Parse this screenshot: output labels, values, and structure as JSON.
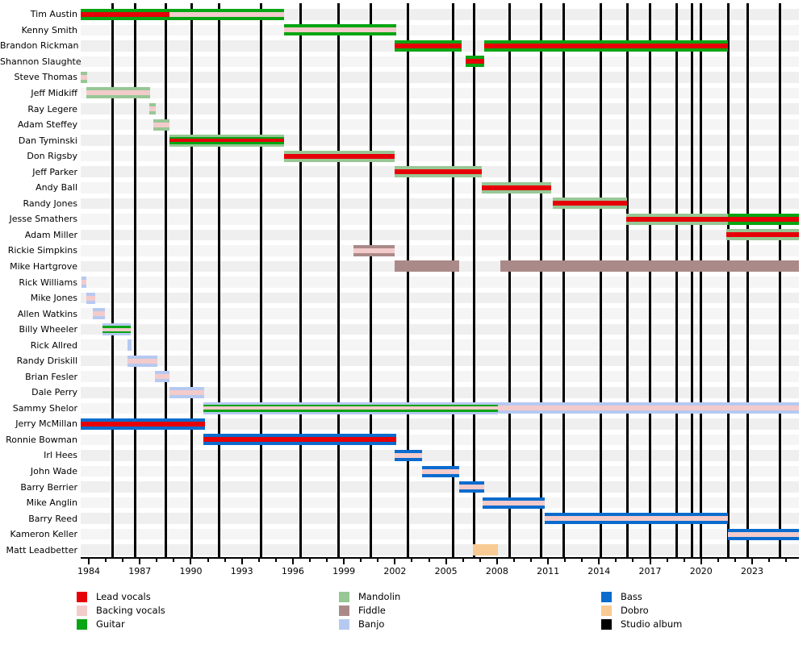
{
  "chart_data": {
    "type": "bar",
    "subtype": "membership-timeline-gantt",
    "title": "",
    "x_axis": {
      "start": 1983.53,
      "end": 2025.75,
      "major_tick_years": [
        1984,
        1987,
        1990,
        1993,
        1996,
        1999,
        2002,
        2005,
        2008,
        2011,
        2014,
        2017,
        2020,
        2023
      ],
      "minor_tick_step": 1,
      "minor_tick_first": 1984,
      "minor_tick_last": 2025
    },
    "roles": {
      "lead_vocals": {
        "label": "Lead vocals",
        "color": "#e60008"
      },
      "backing_vocals": {
        "label": "Backing vocals",
        "color": "#f4cbcb"
      },
      "guitar": {
        "label": "Guitar",
        "color": "#07a513"
      },
      "mandolin": {
        "label": "Mandolin",
        "color": "#97c795"
      },
      "fiddle": {
        "label": "Fiddle",
        "color": "#aa8a89"
      },
      "banjo": {
        "label": "Banjo",
        "color": "#b6c9f1"
      },
      "bass": {
        "label": "Bass",
        "color": "#0b6ccd"
      },
      "dobro": {
        "label": "Dobro",
        "color": "#f8cb94"
      },
      "studio_album": {
        "label": "Studio album",
        "color": "#000000"
      }
    },
    "legend": {
      "columns": [
        [
          "lead_vocals",
          "backing_vocals",
          "guitar"
        ],
        [
          "mandolin",
          "fiddle",
          "banjo"
        ],
        [
          "bass",
          "dobro",
          "studio_album"
        ]
      ]
    },
    "album_line_years": [
      1985.4,
      1986.75,
      1988.55,
      1990.05,
      1991.65,
      1994.15,
      1996.45,
      1998.7,
      2000.6,
      2002.75,
      2005.4,
      2006.65,
      2008.75,
      2010.6,
      2011.9,
      2014.1,
      2015.65,
      2017.0,
      2018.55,
      2019.45,
      2020.0,
      2021.6,
      2022.75,
      2024.65
    ],
    "categories": [
      "Tim Austin",
      "Kenny Smith",
      "Brandon Rickman",
      "Shannon Slaughter",
      "Steve Thomas",
      "Jeff Midkiff",
      "Ray Legere",
      "Adam Steffey",
      "Dan Tyminski",
      "Don Rigsby",
      "Jeff Parker",
      "Andy Ball",
      "Randy Jones",
      "Jesse Smathers",
      "Adam Miller",
      "Rickie Simpkins",
      "Mike Hartgrove",
      "Rick Williams",
      "Mike Jones",
      "Allen Watkins",
      "Billy Wheeler",
      "Rick Allred",
      "Randy Driskill",
      "Brian Fesler",
      "Dale Perry",
      "Sammy Shelor",
      "Jerry McMillan",
      "Ronnie Bowman",
      "Irl Hees",
      "John Wade",
      "Barry Berrier",
      "Mike Anglin",
      "Barry Reed",
      "Kameron Keller",
      "Matt Leadbetter"
    ],
    "members": [
      {
        "name": "Tim Austin",
        "segments": [
          {
            "start": 1983.53,
            "end": 1988.75,
            "layers": [
              "guitar",
              "lead_vocals",
              "guitar"
            ]
          },
          {
            "start": 1988.75,
            "end": 1995.5,
            "layers": [
              "guitar",
              "backing_vocals",
              "guitar"
            ]
          }
        ]
      },
      {
        "name": "Kenny Smith",
        "segments": [
          {
            "start": 1995.5,
            "end": 2002.1,
            "layers": [
              "guitar",
              "backing_vocals",
              "guitar"
            ]
          }
        ]
      },
      {
        "name": "Brandon Rickman",
        "segments": [
          {
            "start": 2002.0,
            "end": 2005.9,
            "layers": [
              "guitar",
              "lead_vocals",
              "guitar"
            ]
          },
          {
            "start": 2007.25,
            "end": 2021.6,
            "layers": [
              "guitar",
              "lead_vocals",
              "guitar"
            ]
          }
        ]
      },
      {
        "name": "Shannon Slaughter",
        "segments": [
          {
            "start": 2006.15,
            "end": 2007.25,
            "layers": [
              "guitar",
              "lead_vocals",
              "guitar"
            ]
          }
        ]
      },
      {
        "name": "Steve Thomas",
        "segments": [
          {
            "start": 1983.53,
            "end": 1983.9,
            "layers": [
              "mandolin",
              "backing_vocals",
              "mandolin"
            ]
          }
        ]
      },
      {
        "name": "Jeff Midkiff",
        "segments": [
          {
            "start": 1983.85,
            "end": 1987.6,
            "layers": [
              "mandolin",
              "backing_vocals",
              "mandolin"
            ]
          }
        ]
      },
      {
        "name": "Ray Legere",
        "segments": [
          {
            "start": 1987.55,
            "end": 1987.95,
            "layers": [
              "mandolin",
              "backing_vocals",
              "mandolin"
            ]
          }
        ]
      },
      {
        "name": "Adam Steffey",
        "segments": [
          {
            "start": 1987.8,
            "end": 1988.75,
            "layers": [
              "mandolin",
              "backing_vocals",
              "mandolin"
            ]
          }
        ]
      },
      {
        "name": "Dan Tyminski",
        "segments": [
          {
            "start": 1988.75,
            "end": 1995.5,
            "layers": [
              "mandolin",
              "guitar",
              "lead_vocals",
              "guitar",
              "mandolin"
            ]
          }
        ]
      },
      {
        "name": "Don Rigsby",
        "segments": [
          {
            "start": 1995.5,
            "end": 2002.0,
            "layers": [
              "mandolin",
              "lead_vocals",
              "mandolin"
            ]
          }
        ]
      },
      {
        "name": "Jeff Parker",
        "segments": [
          {
            "start": 2002.0,
            "end": 2007.1,
            "layers": [
              "mandolin",
              "lead_vocals",
              "mandolin"
            ]
          }
        ]
      },
      {
        "name": "Andy Ball",
        "segments": [
          {
            "start": 2007.1,
            "end": 2011.2,
            "layers": [
              "mandolin",
              "lead_vocals",
              "mandolin"
            ]
          }
        ]
      },
      {
        "name": "Randy Jones",
        "segments": [
          {
            "start": 2011.3,
            "end": 2015.65,
            "layers": [
              "mandolin",
              "lead_vocals",
              "mandolin"
            ]
          }
        ]
      },
      {
        "name": "Jesse Smathers",
        "segments": [
          {
            "start": 2015.6,
            "end": 2021.6,
            "layers": [
              "mandolin",
              "lead_vocals",
              "mandolin"
            ]
          },
          {
            "start": 2021.6,
            "end": 2025.75,
            "layers": [
              "guitar",
              "lead_vocals",
              "guitar"
            ]
          }
        ]
      },
      {
        "name": "Adam Miller",
        "segments": [
          {
            "start": 2021.5,
            "end": 2025.75,
            "layers": [
              "mandolin",
              "lead_vocals",
              "mandolin"
            ]
          }
        ]
      },
      {
        "name": "Rickie Simpkins",
        "segments": [
          {
            "start": 1999.55,
            "end": 2002.0,
            "layers": [
              "fiddle",
              "backing_vocals",
              "fiddle"
            ]
          }
        ]
      },
      {
        "name": "Mike Hartgrove",
        "segments": [
          {
            "start": 2002.0,
            "end": 2005.8,
            "layers": [
              "fiddle"
            ]
          },
          {
            "start": 2008.2,
            "end": 2025.75,
            "layers": [
              "fiddle"
            ]
          }
        ]
      },
      {
        "name": "Rick Williams",
        "segments": [
          {
            "start": 1983.55,
            "end": 1983.85,
            "layers": [
              "banjo",
              "backing_vocals",
              "banjo"
            ]
          }
        ]
      },
      {
        "name": "Mike Jones",
        "segments": [
          {
            "start": 1983.85,
            "end": 1984.4,
            "layers": [
              "banjo",
              "backing_vocals",
              "banjo"
            ]
          }
        ]
      },
      {
        "name": "Allen Watkins",
        "segments": [
          {
            "start": 1984.25,
            "end": 1984.95,
            "layers": [
              "banjo",
              "backing_vocals",
              "banjo"
            ]
          }
        ]
      },
      {
        "name": "Billy Wheeler",
        "segments": [
          {
            "start": 1984.8,
            "end": 1986.45,
            "layers": [
              "banjo",
              "guitar",
              "backing_vocals",
              "guitar",
              "banjo"
            ]
          }
        ]
      },
      {
        "name": "Rick Allred",
        "segments": [
          {
            "start": 1986.3,
            "end": 1986.5,
            "layers": [
              "banjo"
            ]
          }
        ]
      },
      {
        "name": "Randy Driskill",
        "segments": [
          {
            "start": 1986.3,
            "end": 1988.05,
            "layers": [
              "banjo",
              "backing_vocals",
              "banjo"
            ]
          }
        ]
      },
      {
        "name": "Brian Fesler",
        "segments": [
          {
            "start": 1987.9,
            "end": 1988.75,
            "layers": [
              "banjo",
              "backing_vocals",
              "banjo"
            ]
          }
        ]
      },
      {
        "name": "Dale Perry",
        "segments": [
          {
            "start": 1988.75,
            "end": 1990.8,
            "layers": [
              "banjo",
              "backing_vocals",
              "banjo"
            ]
          }
        ]
      },
      {
        "name": "Sammy Shelor",
        "segments": [
          {
            "start": 1990.75,
            "end": 2008.05,
            "layers": [
              "banjo",
              "guitar",
              "backing_vocals",
              "guitar",
              "banjo"
            ]
          },
          {
            "start": 2008.05,
            "end": 2025.75,
            "layers": [
              "banjo",
              "backing_vocals",
              "banjo"
            ]
          }
        ]
      },
      {
        "name": "Jerry McMillan",
        "segments": [
          {
            "start": 1983.53,
            "end": 1990.85,
            "layers": [
              "bass",
              "lead_vocals",
              "bass"
            ]
          }
        ]
      },
      {
        "name": "Ronnie Bowman",
        "segments": [
          {
            "start": 1990.75,
            "end": 2002.1,
            "layers": [
              "bass",
              "lead_vocals",
              "bass"
            ]
          }
        ]
      },
      {
        "name": "Irl Hees",
        "segments": [
          {
            "start": 2002.0,
            "end": 2003.6,
            "layers": [
              "bass",
              "backing_vocals",
              "bass"
            ]
          }
        ]
      },
      {
        "name": "John Wade",
        "segments": [
          {
            "start": 2003.6,
            "end": 2005.8,
            "layers": [
              "bass",
              "backing_vocals",
              "bass"
            ]
          }
        ]
      },
      {
        "name": "Barry Berrier",
        "segments": [
          {
            "start": 2005.8,
            "end": 2007.25,
            "layers": [
              "bass",
              "backing_vocals",
              "bass"
            ]
          }
        ]
      },
      {
        "name": "Mike Anglin",
        "segments": [
          {
            "start": 2007.15,
            "end": 2010.8,
            "layers": [
              "bass",
              "backing_vocals",
              "bass"
            ]
          }
        ]
      },
      {
        "name": "Barry Reed",
        "segments": [
          {
            "start": 2010.8,
            "end": 2021.6,
            "layers": [
              "bass",
              "backing_vocals",
              "bass"
            ]
          }
        ]
      },
      {
        "name": "Kameron Keller",
        "segments": [
          {
            "start": 2021.6,
            "end": 2025.75,
            "layers": [
              "bass",
              "backing_vocals",
              "bass"
            ]
          }
        ]
      },
      {
        "name": "Matt Leadbetter",
        "segments": [
          {
            "start": 2006.6,
            "end": 2008.05,
            "layers": [
              "dobro"
            ]
          }
        ]
      }
    ]
  }
}
